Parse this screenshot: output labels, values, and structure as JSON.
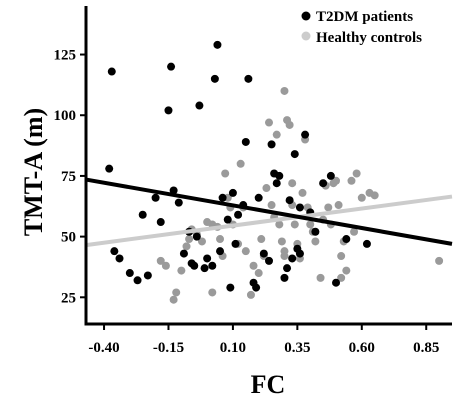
{
  "chart_data": {
    "type": "scatter",
    "xlabel": "FC",
    "ylabel": "TMT-A (m)",
    "xlim": [
      -0.47,
      0.95
    ],
    "ylim": [
      14,
      145
    ],
    "x_ticks": [
      -0.4,
      -0.15,
      0.1,
      0.35,
      0.6,
      0.85
    ],
    "x_tick_labels": [
      "-0.40",
      "-0.15",
      "0.10",
      "0.35",
      "0.60",
      "0.85"
    ],
    "y_ticks": [
      25,
      50,
      75,
      100,
      125
    ],
    "y_tick_labels": [
      "25",
      "50",
      "75",
      "100",
      "125"
    ],
    "grid": false,
    "legend_position": "top-right",
    "series": [
      {
        "name": "Healthy controls",
        "color": "#9a9a9a",
        "line_color": "#cccccc",
        "fit_line": {
          "x": [
            -0.47,
            0.95
          ],
          "y": [
            46.5,
            66.5
          ]
        },
        "points": [
          [
            -0.18,
            40
          ],
          [
            -0.16,
            38
          ],
          [
            -0.12,
            27
          ],
          [
            -0.1,
            36
          ],
          [
            -0.08,
            46
          ],
          [
            -0.07,
            49
          ],
          [
            -0.06,
            53
          ],
          [
            -0.04,
            51
          ],
          [
            -0.02,
            48
          ],
          [
            0.0,
            56
          ],
          [
            0.02,
            55
          ],
          [
            0.04,
            54
          ],
          [
            0.05,
            49
          ],
          [
            0.07,
            76
          ],
          [
            0.08,
            66
          ],
          [
            0.09,
            62
          ],
          [
            0.1,
            55
          ],
          [
            0.12,
            47
          ],
          [
            0.13,
            80
          ],
          [
            0.15,
            44
          ],
          [
            0.17,
            26
          ],
          [
            0.18,
            38
          ],
          [
            0.2,
            35
          ],
          [
            0.21,
            49
          ],
          [
            0.23,
            70
          ],
          [
            0.24,
            97
          ],
          [
            0.25,
            63
          ],
          [
            0.26,
            58
          ],
          [
            0.27,
            92
          ],
          [
            0.28,
            55
          ],
          [
            0.29,
            48
          ],
          [
            0.3,
            110
          ],
          [
            0.3,
            44
          ],
          [
            0.31,
            98
          ],
          [
            0.32,
            96
          ],
          [
            0.33,
            72
          ],
          [
            0.33,
            63
          ],
          [
            0.34,
            55
          ],
          [
            0.35,
            47
          ],
          [
            0.36,
            41
          ],
          [
            0.37,
            68
          ],
          [
            0.38,
            90
          ],
          [
            0.39,
            62
          ],
          [
            0.4,
            55
          ],
          [
            0.41,
            52
          ],
          [
            0.42,
            48
          ],
          [
            0.44,
            33
          ],
          [
            0.45,
            57
          ],
          [
            0.46,
            71
          ],
          [
            0.47,
            62
          ],
          [
            0.48,
            55
          ],
          [
            0.49,
            72
          ],
          [
            0.5,
            73
          ],
          [
            0.51,
            63
          ],
          [
            0.52,
            42
          ],
          [
            0.53,
            48
          ],
          [
            0.54,
            36
          ],
          [
            0.56,
            73
          ],
          [
            0.58,
            76
          ],
          [
            0.6,
            66
          ],
          [
            0.63,
            68
          ],
          [
            0.65,
            67
          ],
          [
            0.52,
            33
          ],
          [
            0.57,
            52
          ],
          [
            0.3,
            42
          ],
          [
            0.22,
            42
          ],
          [
            0.14,
            62
          ],
          [
            0.06,
            42
          ],
          [
            0.02,
            27
          ],
          [
            -0.13,
            24
          ],
          [
            0.9,
            40
          ]
        ]
      },
      {
        "name": "T2DM patients",
        "color": "#000000",
        "line_color": "#000000",
        "fit_line": {
          "x": [
            -0.47,
            0.95
          ],
          "y": [
            73.5,
            47
          ]
        },
        "points": [
          [
            -0.37,
            118
          ],
          [
            -0.38,
            78
          ],
          [
            -0.36,
            44
          ],
          [
            -0.34,
            41
          ],
          [
            -0.3,
            35
          ],
          [
            -0.27,
            32
          ],
          [
            -0.25,
            59
          ],
          [
            -0.23,
            34
          ],
          [
            -0.2,
            66
          ],
          [
            -0.18,
            56
          ],
          [
            -0.15,
            102
          ],
          [
            -0.14,
            120
          ],
          [
            -0.13,
            69
          ],
          [
            -0.11,
            64
          ],
          [
            -0.09,
            43
          ],
          [
            -0.07,
            52
          ],
          [
            -0.06,
            39
          ],
          [
            -0.05,
            38
          ],
          [
            -0.04,
            50
          ],
          [
            -0.03,
            104
          ],
          [
            -0.01,
            37
          ],
          [
            0.0,
            41
          ],
          [
            0.02,
            38
          ],
          [
            0.03,
            115
          ],
          [
            0.04,
            129
          ],
          [
            0.05,
            44
          ],
          [
            0.06,
            66
          ],
          [
            0.08,
            57
          ],
          [
            0.09,
            29
          ],
          [
            0.1,
            68
          ],
          [
            0.11,
            47
          ],
          [
            0.12,
            59
          ],
          [
            0.14,
            63
          ],
          [
            0.15,
            89
          ],
          [
            0.16,
            115
          ],
          [
            0.18,
            31
          ],
          [
            0.19,
            29
          ],
          [
            0.2,
            66
          ],
          [
            0.22,
            43
          ],
          [
            0.24,
            40
          ],
          [
            0.25,
            88
          ],
          [
            0.26,
            76
          ],
          [
            0.27,
            72
          ],
          [
            0.28,
            75
          ],
          [
            0.3,
            33
          ],
          [
            0.31,
            37
          ],
          [
            0.32,
            65
          ],
          [
            0.33,
            41
          ],
          [
            0.34,
            84
          ],
          [
            0.35,
            45
          ],
          [
            0.36,
            62
          ],
          [
            0.38,
            92
          ],
          [
            0.4,
            60
          ],
          [
            0.42,
            52
          ],
          [
            0.45,
            72
          ],
          [
            0.48,
            75
          ],
          [
            0.5,
            31
          ],
          [
            0.54,
            49
          ],
          [
            0.62,
            47
          ],
          [
            0.36,
            43
          ]
        ]
      }
    ]
  }
}
